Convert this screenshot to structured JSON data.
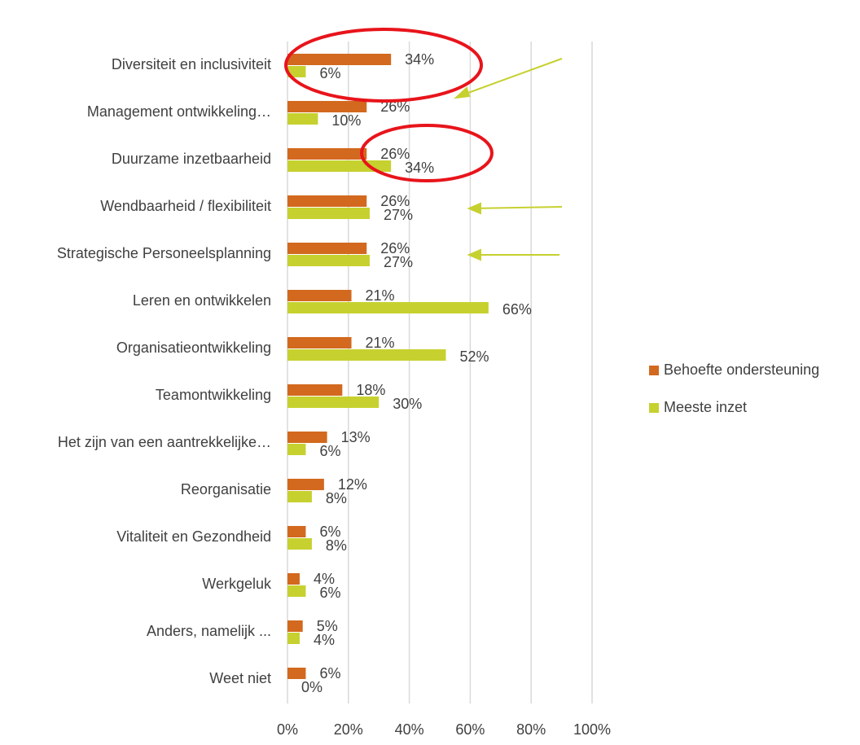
{
  "chart_data": {
    "type": "hbar",
    "categories": [
      "Diversiteit en inclusiviteit",
      "Management ontwikkeling…",
      "Duurzame inzetbaarheid",
      "Wendbaarheid / flexibiliteit",
      "Strategische Personeelsplanning",
      "Leren en ontwikkelen",
      "Organisatieontwikkeling",
      "Teamontwikkeling",
      "Het zijn van een aantrekkelijke…",
      "Reorganisatie",
      "Vitaliteit en Gezondheid",
      "Werkgeluk",
      "Anders, namelijk ...",
      "Weet niet"
    ],
    "series": [
      {
        "name": "Behoefte ondersteuning",
        "color": "#d2691e",
        "values": [
          34,
          26,
          26,
          26,
          26,
          21,
          21,
          18,
          13,
          12,
          6,
          4,
          5,
          6
        ],
        "value_labels": [
          "34%",
          "26%",
          "26%",
          "26%",
          "26%",
          "21%",
          "21%",
          "18%",
          "13%",
          "12%",
          "6%",
          "4%",
          "5%",
          "6%"
        ]
      },
      {
        "name": "Meeste inzet",
        "color": "#c6d12f",
        "values": [
          6,
          10,
          34,
          27,
          27,
          66,
          52,
          30,
          6,
          8,
          8,
          6,
          4,
          0
        ],
        "value_labels": [
          "6%",
          "10%",
          "34%",
          "27%",
          "27%",
          "66%",
          "52%",
          "30%",
          "6%",
          "8%",
          "8%",
          "6%",
          "4%",
          "0%"
        ]
      }
    ],
    "xlim": [
      0,
      100
    ],
    "xticks": [
      {
        "value": 0,
        "label": "0%"
      },
      {
        "value": 20,
        "label": "20%"
      },
      {
        "value": 40,
        "label": "40%"
      },
      {
        "value": 60,
        "label": "60%"
      },
      {
        "value": 80,
        "label": "80%"
      },
      {
        "value": 100,
        "label": "100%"
      }
    ],
    "grid": true,
    "legend": "right"
  }
}
